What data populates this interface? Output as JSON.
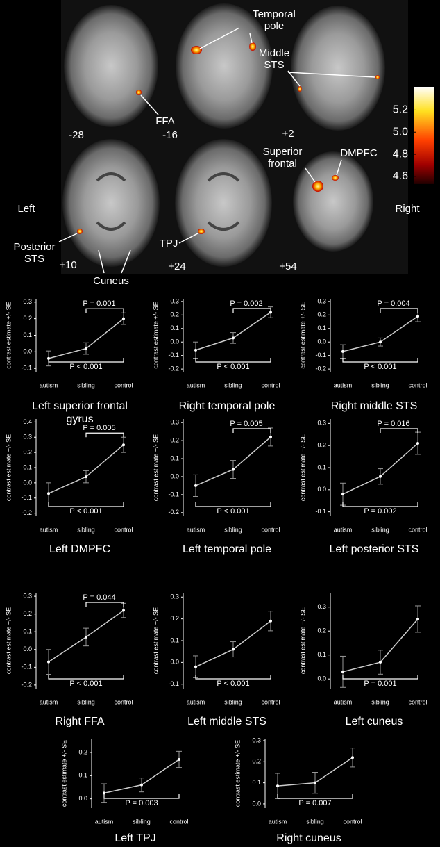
{
  "brain_panel": {
    "region_labels": [
      "Temporal pole",
      "Middle STS",
      "FFA",
      "Superior frontal",
      "DMPFC",
      "Posterior STS",
      "TPJ",
      "Cuneus"
    ],
    "slice_labels": [
      "-28",
      "-16",
      "+2",
      "+10",
      "+24",
      "+54"
    ],
    "side_labels": [
      "Left",
      "Right"
    ],
    "colorbar": {
      "lim": [
        4.53,
        5.41
      ],
      "ticks": [
        5.2,
        {
          "value": 5,
          "label": "5.0"
        },
        4.8,
        4.6
      ]
    }
  },
  "chart_data": [
    {
      "type": "line",
      "title": "Left superior frontal gyrus",
      "y_label": "contrast estimate +/- SE",
      "categories": [
        "autism",
        "sibling",
        "control"
      ],
      "values": [
        -0.04,
        0.02,
        0.2
      ],
      "errors": [
        0.045,
        0.035,
        0.035
      ],
      "ylim": [
        -0.12,
        0.32
      ],
      "yticks": [
        -0.1,
        {
          "value": 0,
          "label": "0.0"
        },
        0.1,
        0.2,
        0.3
      ],
      "annotations": [
        {
          "text": "P = 0.001",
          "from": 1,
          "to": 2,
          "position": "top"
        },
        {
          "text": "P < 0.001",
          "from": 0,
          "to": 2,
          "position": "bottom"
        }
      ]
    },
    {
      "type": "line",
      "title": "Right temporal pole",
      "y_label": "contrast estimate +/- SE",
      "categories": [
        "autism",
        "sibling",
        "control"
      ],
      "values": [
        -0.06,
        0.03,
        0.22
      ],
      "errors": [
        0.06,
        0.04,
        0.04
      ],
      "ylim": [
        -0.22,
        0.32
      ],
      "yticks": [
        -0.2,
        -0.1,
        {
          "value": 0,
          "label": "0.0"
        },
        0.1,
        0.2,
        0.3
      ],
      "annotations": [
        {
          "text": "P = 0.002",
          "from": 1,
          "to": 2,
          "position": "top"
        },
        {
          "text": "P < 0.001",
          "from": 0,
          "to": 2,
          "position": "bottom"
        }
      ]
    },
    {
      "type": "line",
      "title": "Right middle STS",
      "y_label": "contrast estimate +/- SE",
      "categories": [
        "autism",
        "sibling",
        "control"
      ],
      "values": [
        -0.07,
        0.0,
        0.19
      ],
      "errors": [
        0.05,
        0.03,
        0.04
      ],
      "ylim": [
        -0.22,
        0.32
      ],
      "yticks": [
        -0.2,
        -0.1,
        {
          "value": 0,
          "label": "0.0"
        },
        0.1,
        0.2,
        0.3
      ],
      "annotations": [
        {
          "text": "P = 0.004",
          "from": 1,
          "to": 2,
          "position": "top"
        },
        {
          "text": "P < 0.001",
          "from": 0,
          "to": 2,
          "position": "bottom"
        }
      ]
    },
    {
      "type": "line",
      "title": "Left DMPFC",
      "y_label": "contrast estimate +/- SE",
      "categories": [
        "autism",
        "sibling",
        "control"
      ],
      "values": [
        -0.07,
        0.04,
        0.25
      ],
      "errors": [
        0.07,
        0.04,
        0.05
      ],
      "ylim": [
        -0.22,
        0.42
      ],
      "yticks": [
        -0.2,
        -0.1,
        {
          "value": 0,
          "label": "0.0"
        },
        0.1,
        0.2,
        0.3,
        0.4
      ],
      "annotations": [
        {
          "text": "P = 0.005",
          "from": 1,
          "to": 2,
          "position": "top"
        },
        {
          "text": "P < 0.001",
          "from": 0,
          "to": 2,
          "position": "bottom"
        }
      ]
    },
    {
      "type": "line",
      "title": "Left temporal pole",
      "y_label": "contrast estimate +/- SE",
      "categories": [
        "autism",
        "sibling",
        "control"
      ],
      "values": [
        -0.05,
        0.04,
        0.22
      ],
      "errors": [
        0.06,
        0.05,
        0.05
      ],
      "ylim": [
        -0.22,
        0.32
      ],
      "yticks": [
        -0.2,
        -0.1,
        {
          "value": 0,
          "label": "0.0"
        },
        0.1,
        0.2,
        0.3
      ],
      "annotations": [
        {
          "text": "P = 0.005",
          "from": 1,
          "to": 2,
          "position": "top"
        },
        {
          "text": "P < 0.001",
          "from": 0,
          "to": 2,
          "position": "bottom"
        }
      ]
    },
    {
      "type": "line",
      "title": "Left posterior STS",
      "y_label": "contrast estimate +/- SE",
      "categories": [
        "autism",
        "sibling",
        "control"
      ],
      "values": [
        -0.02,
        0.06,
        0.21
      ],
      "errors": [
        0.05,
        0.035,
        0.05
      ],
      "ylim": [
        -0.12,
        0.32
      ],
      "yticks": [
        -0.1,
        {
          "value": 0,
          "label": "0.0"
        },
        0.1,
        0.2,
        0.3
      ],
      "annotations": [
        {
          "text": "P = 0.016",
          "from": 1,
          "to": 2,
          "position": "top"
        },
        {
          "text": "P = 0.002",
          "from": 0,
          "to": 2,
          "position": "bottom"
        }
      ]
    },
    {
      "type": "line",
      "title": "Right FFA",
      "y_label": "contrast estimate +/- SE",
      "categories": [
        "autism",
        "sibling",
        "control"
      ],
      "values": [
        -0.07,
        0.07,
        0.22
      ],
      "errors": [
        0.07,
        0.05,
        0.04
      ],
      "ylim": [
        -0.22,
        0.32
      ],
      "yticks": [
        -0.2,
        -0.1,
        {
          "value": 0,
          "label": "0.0"
        },
        0.1,
        0.2,
        0.3
      ],
      "annotations": [
        {
          "text": "P = 0.044",
          "from": 1,
          "to": 2,
          "position": "top"
        },
        {
          "text": "P < 0.001",
          "from": 0,
          "to": 2,
          "position": "bottom"
        }
      ]
    },
    {
      "type": "line",
      "title": "Left middle STS",
      "y_label": "contrast estimate +/- SE",
      "categories": [
        "autism",
        "sibling",
        "control"
      ],
      "values": [
        -0.02,
        0.06,
        0.19
      ],
      "errors": [
        0.05,
        0.035,
        0.045
      ],
      "ylim": [
        -0.12,
        0.32
      ],
      "yticks": [
        -0.1,
        {
          "value": 0,
          "label": "0.0"
        },
        0.1,
        0.2,
        0.3
      ],
      "annotations": [
        {
          "text": "P < 0.001",
          "from": 0,
          "to": 2,
          "position": "bottom"
        }
      ]
    },
    {
      "type": "line",
      "title": "Left cuneus",
      "y_label": "contrast estimate +/- SE",
      "categories": [
        "autism",
        "sibling",
        "control"
      ],
      "values": [
        0.03,
        0.07,
        0.25
      ],
      "errors": [
        0.065,
        0.05,
        0.055
      ],
      "ylim": [
        -0.04,
        0.36
      ],
      "yticks": [
        {
          "value": 0,
          "label": "0.0"
        },
        0.1,
        0.2,
        0.3
      ],
      "annotations": [
        {
          "text": "P = 0.001",
          "from": 0,
          "to": 2,
          "position": "bottom"
        }
      ]
    },
    {
      "type": "line",
      "title": "Left TPJ",
      "y_label": "contrast estimate +/- SE",
      "categories": [
        "autism",
        "sibling",
        "control"
      ],
      "values": [
        0.025,
        0.06,
        0.17
      ],
      "errors": [
        0.04,
        0.03,
        0.035
      ],
      "ylim": [
        -0.04,
        0.26
      ],
      "yticks": [
        {
          "value": 0,
          "label": "0.0"
        },
        0.1,
        0.2
      ],
      "annotations": [
        {
          "text": "P = 0.003",
          "from": 0,
          "to": 2,
          "position": "bottom"
        }
      ]
    },
    {
      "type": "line",
      "title": "Right cuneus",
      "y_label": "contrast estimate +/- SE",
      "categories": [
        "autism",
        "sibling",
        "control"
      ],
      "values": [
        0.085,
        0.1,
        0.22
      ],
      "errors": [
        0.06,
        0.05,
        0.045
      ],
      "ylim": [
        -0.02,
        0.31
      ],
      "yticks": [
        {
          "value": 0,
          "label": "0.0"
        },
        0.1,
        0.2,
        0.3
      ],
      "annotations": [
        {
          "text": "P = 0.007",
          "from": 0,
          "to": 2,
          "position": "bottom"
        }
      ]
    }
  ]
}
